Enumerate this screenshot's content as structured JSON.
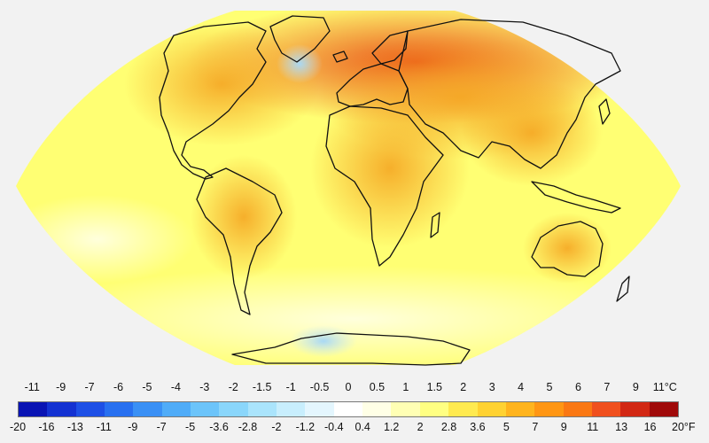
{
  "map": {
    "projection": "Wagner VI",
    "basemap": "coastlines",
    "fill_colors": {
      "ocean_base": "#ffff73",
      "land_warm": "#f5a623",
      "arctic_hot": "#e94b14",
      "cool_anomaly": "#c8e8f8"
    }
  },
  "legend": {
    "celsius_ticks": [
      "-11",
      "-9",
      "-7",
      "-6",
      "-5",
      "-4",
      "-3",
      "-2",
      "-1.5",
      "-1",
      "-0.5",
      "0",
      "0.5",
      "1",
      "1.5",
      "2",
      "3",
      "4",
      "5",
      "6",
      "7",
      "9"
    ],
    "celsius_unit": "11°C",
    "fahrenheit_ticks": [
      "-20",
      "-16",
      "-13",
      "-11",
      "-9",
      "-7",
      "-5",
      "-3.6",
      "-2.8",
      "-2",
      "-1.2",
      "-0.4",
      "0.4",
      "1.2",
      "2",
      "2.8",
      "3.6",
      "5",
      "7",
      "9",
      "11",
      "13",
      "16"
    ],
    "fahrenheit_unit": "20°F",
    "colors": [
      "#0a14b4",
      "#1432d2",
      "#1e50e6",
      "#2870f0",
      "#3a90f5",
      "#50acf8",
      "#6cc4fa",
      "#8ad6fb",
      "#aae4fc",
      "#c8eefd",
      "#e4f6fe",
      "#ffffff",
      "#ffffe6",
      "#ffffb4",
      "#ffff82",
      "#ffea50",
      "#ffd232",
      "#ffb41e",
      "#ff9614",
      "#fa7814",
      "#f0501e",
      "#d22814",
      "#a00a0a"
    ]
  }
}
